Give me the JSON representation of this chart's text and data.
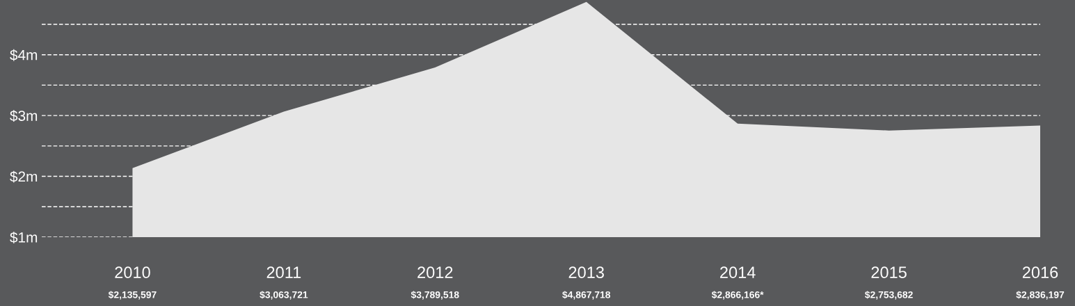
{
  "chart_data": {
    "type": "area",
    "categories": [
      "2010",
      "2011",
      "2012",
      "2013",
      "2014",
      "2015",
      "2016"
    ],
    "values": [
      2135597,
      3063721,
      3789518,
      4867718,
      2866166,
      2753682,
      2836197
    ],
    "value_labels": [
      "$2,135,597",
      "$3,063,721",
      "$3,789,518",
      "$4,867,718",
      "$2,866,166*",
      "$2,753,682",
      "$2,836,197"
    ],
    "color": "#e6e6e6",
    "ylim": [
      1000000,
      4900000
    ],
    "yticks": [
      {
        "value": 1000000,
        "label": "$1m"
      },
      {
        "value": 1500000,
        "label": null
      },
      {
        "value": 2000000,
        "label": "$2m"
      },
      {
        "value": 2500000,
        "label": null
      },
      {
        "value": 3000000,
        "label": "$3m"
      },
      {
        "value": 3500000,
        "label": null
      },
      {
        "value": 4000000,
        "label": "$4m"
      },
      {
        "value": 4500000,
        "label": null
      }
    ],
    "grid": "y"
  }
}
